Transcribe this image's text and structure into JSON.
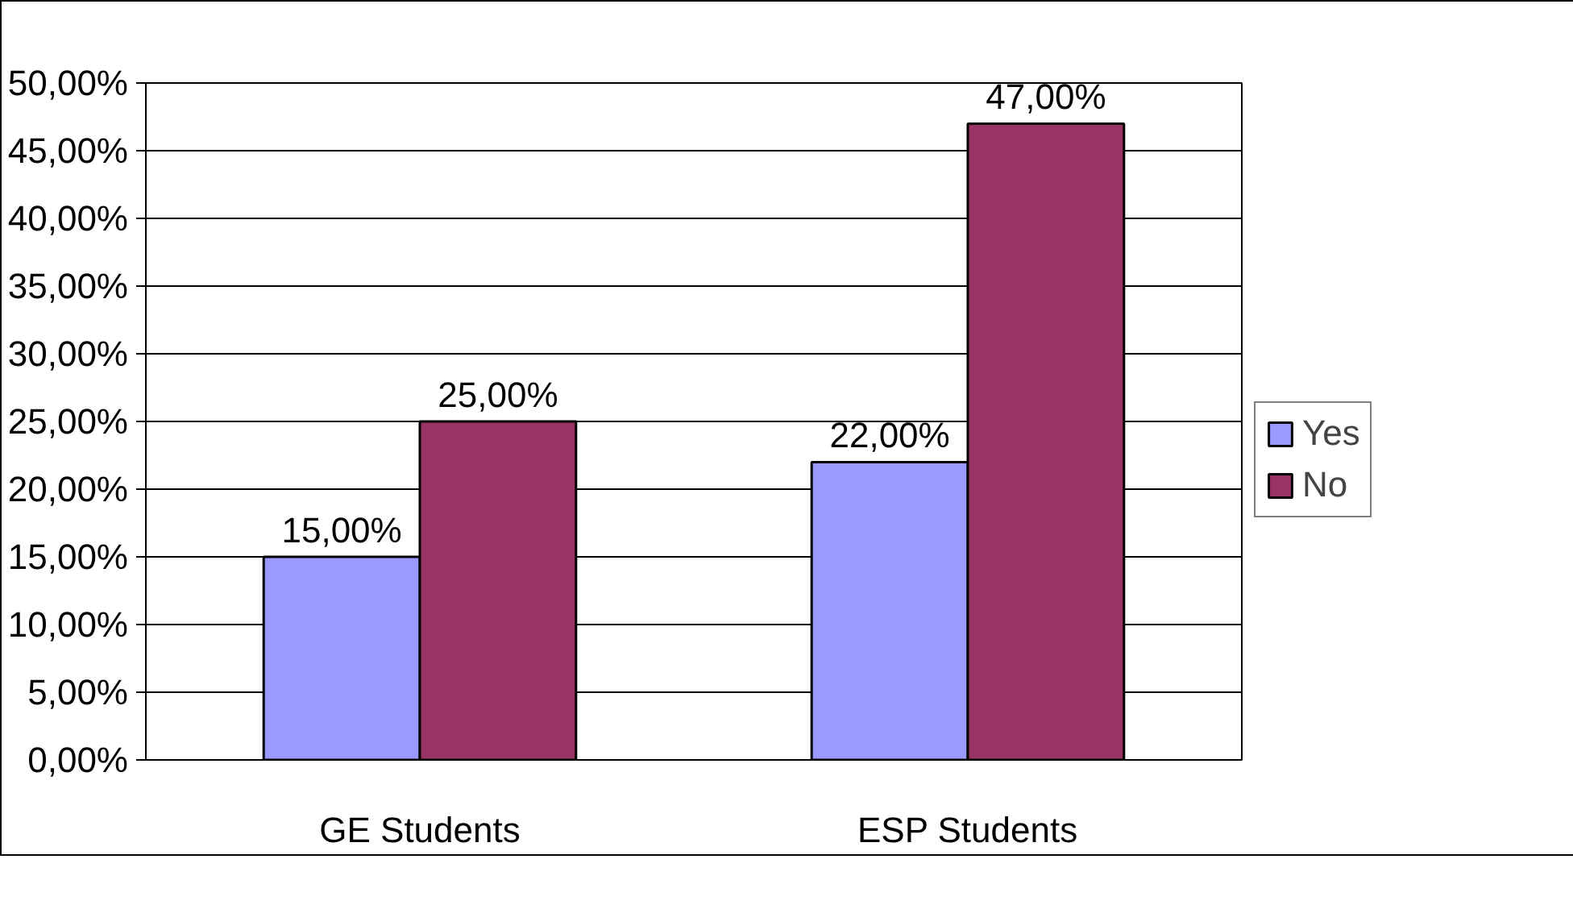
{
  "chart_data": {
    "type": "bar",
    "categories": [
      "GE Students",
      "ESP Students"
    ],
    "series": [
      {
        "name": "Yes",
        "color": "#9999ff",
        "values": [
          15,
          22
        ],
        "value_labels": [
          "15,00%",
          "22,00%"
        ]
      },
      {
        "name": "No",
        "color": "#993366",
        "values": [
          25,
          47
        ],
        "value_labels": [
          "25,00%",
          "47,00%"
        ]
      }
    ],
    "ylim": [
      0,
      50
    ],
    "yticks": [
      {
        "value": 0,
        "label": "0,00%"
      },
      {
        "value": 5,
        "label": "5,00%"
      },
      {
        "value": 10,
        "label": "10,00%"
      },
      {
        "value": 15,
        "label": "15,00%"
      },
      {
        "value": 20,
        "label": "20,00%"
      },
      {
        "value": 25,
        "label": "25,00%"
      },
      {
        "value": 30,
        "label": "30,00%"
      },
      {
        "value": 35,
        "label": "35,00%"
      },
      {
        "value": 40,
        "label": "40,00%"
      },
      {
        "value": 45,
        "label": "45,00%"
      },
      {
        "value": 50,
        "label": "50,00%"
      }
    ],
    "grid": "y",
    "legend": "right"
  }
}
